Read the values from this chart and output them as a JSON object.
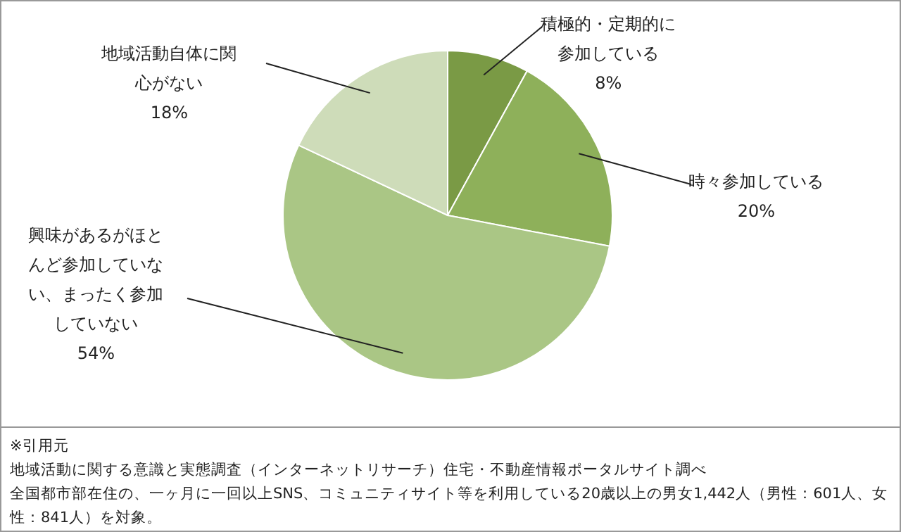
{
  "chart_data": {
    "type": "pie",
    "categories": [
      "積極的・定期的に参加している",
      "時々参加している",
      "興味があるがほとんど参加していない、まったく参加していない",
      "地域活動自体に関心がない"
    ],
    "values": [
      8,
      20,
      54,
      18
    ],
    "value_labels": [
      "8%",
      "20%",
      "54%",
      "18%"
    ],
    "colors": [
      "#7a9a45",
      "#8eb05a",
      "#aac685",
      "#cedcb9"
    ],
    "annotations": [
      "※引用元",
      "地域活動に関する意識と実態調査（インターネットリサーチ）住宅・不動産情報ポータルサイト調べ",
      "全国都市部在住の、一ヶ月に一回以上SNS、コミュニティサイト等を利用している20歳以上の男女1,442人（男性：601人、女性：841人）を対象。"
    ]
  }
}
